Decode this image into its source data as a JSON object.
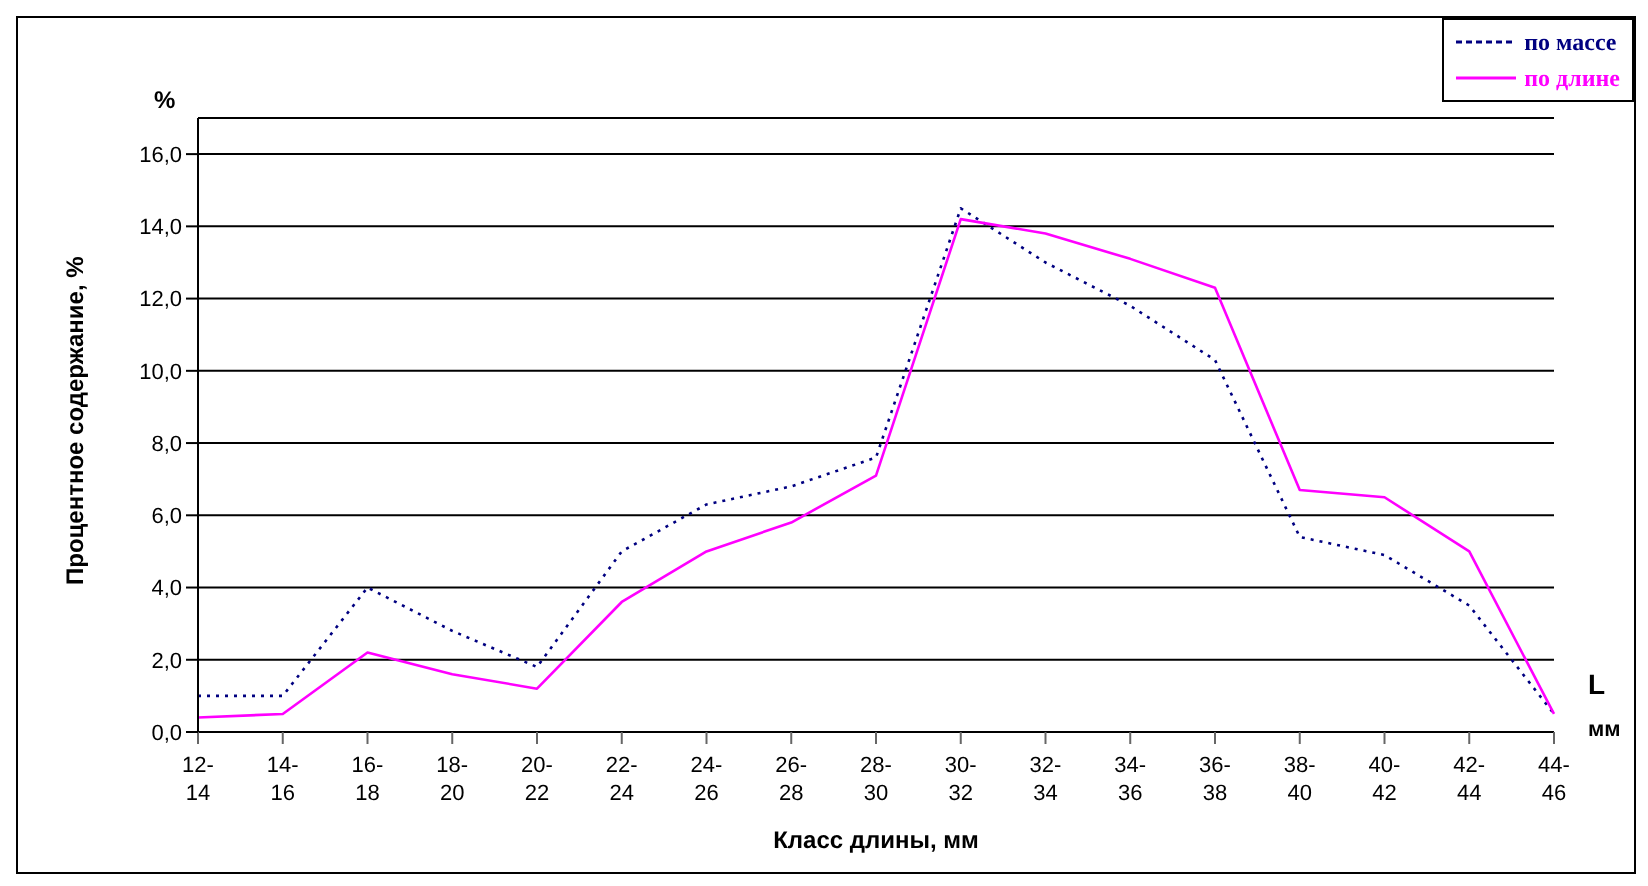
{
  "chart_data": {
    "type": "line",
    "xlabel": "Класс длины, мм",
    "ylabel": "Процентное содержание, %",
    "annotations": [
      "%",
      "L",
      "мм"
    ],
    "categories": [
      "12-14",
      "14-16",
      "16-18",
      "18-20",
      "20-22",
      "22-24",
      "24-26",
      "26-28",
      "28-30",
      "30-32",
      "32-34",
      "34-36",
      "36-38",
      "38-40",
      "40-42",
      "42-44",
      "44-46"
    ],
    "series": [
      {
        "name": "по массе",
        "color": "#000080",
        "line_style": "dotted",
        "values": [
          1.0,
          1.0,
          4.0,
          2.8,
          1.8,
          5.0,
          6.3,
          6.8,
          7.6,
          14.5,
          13.0,
          11.8,
          10.3,
          5.4,
          4.9,
          3.5,
          0.5
        ]
      },
      {
        "name": "по длине",
        "color": "#ff00ff",
        "line_style": "solid",
        "values": [
          0.4,
          0.5,
          2.2,
          1.6,
          1.2,
          3.6,
          5.0,
          5.8,
          7.1,
          14.2,
          13.8,
          13.1,
          12.3,
          6.7,
          6.5,
          5.0,
          0.5
        ]
      }
    ],
    "ylim": [
      0,
      17
    ],
    "yticks": [
      {
        "value": 0,
        "label": "0,0"
      },
      {
        "value": 2,
        "label": "2,0"
      },
      {
        "value": 4,
        "label": "4,0"
      },
      {
        "value": 6,
        "label": "6,0"
      },
      {
        "value": 8,
        "label": "8,0"
      },
      {
        "value": 10,
        "label": "10,0"
      },
      {
        "value": 12,
        "label": "12,0"
      },
      {
        "value": 14,
        "label": "14,0"
      },
      {
        "value": 16,
        "label": "16,0"
      }
    ],
    "grid": "y",
    "legend": "top right",
    "marker": "none"
  }
}
